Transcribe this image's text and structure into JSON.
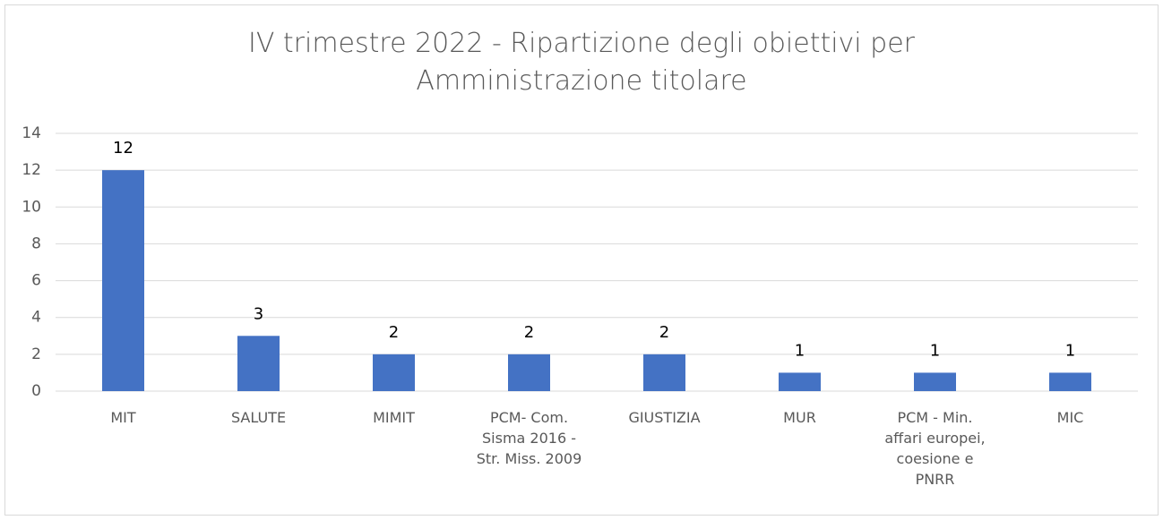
{
  "chart_data": {
    "type": "bar",
    "title": "IV trimestre 2022 - Ripartizione degli obiettivi per Amministrazione titolare",
    "categories": [
      "MIT",
      "SALUTE",
      "MIMIT",
      "PCM- Com. Sisma 2016 - Str. Miss. 2009",
      "GIUSTIZIA",
      "MUR",
      "PCM - Min. affari europei, coesione e PNRR",
      "MIC"
    ],
    "values": [
      12,
      3,
      2,
      2,
      2,
      1,
      1,
      1
    ],
    "color": "#4472c4",
    "ylim": [
      0,
      14
    ],
    "yticks": [
      0,
      2,
      4,
      6,
      8,
      10,
      12,
      14
    ],
    "grid": true
  }
}
